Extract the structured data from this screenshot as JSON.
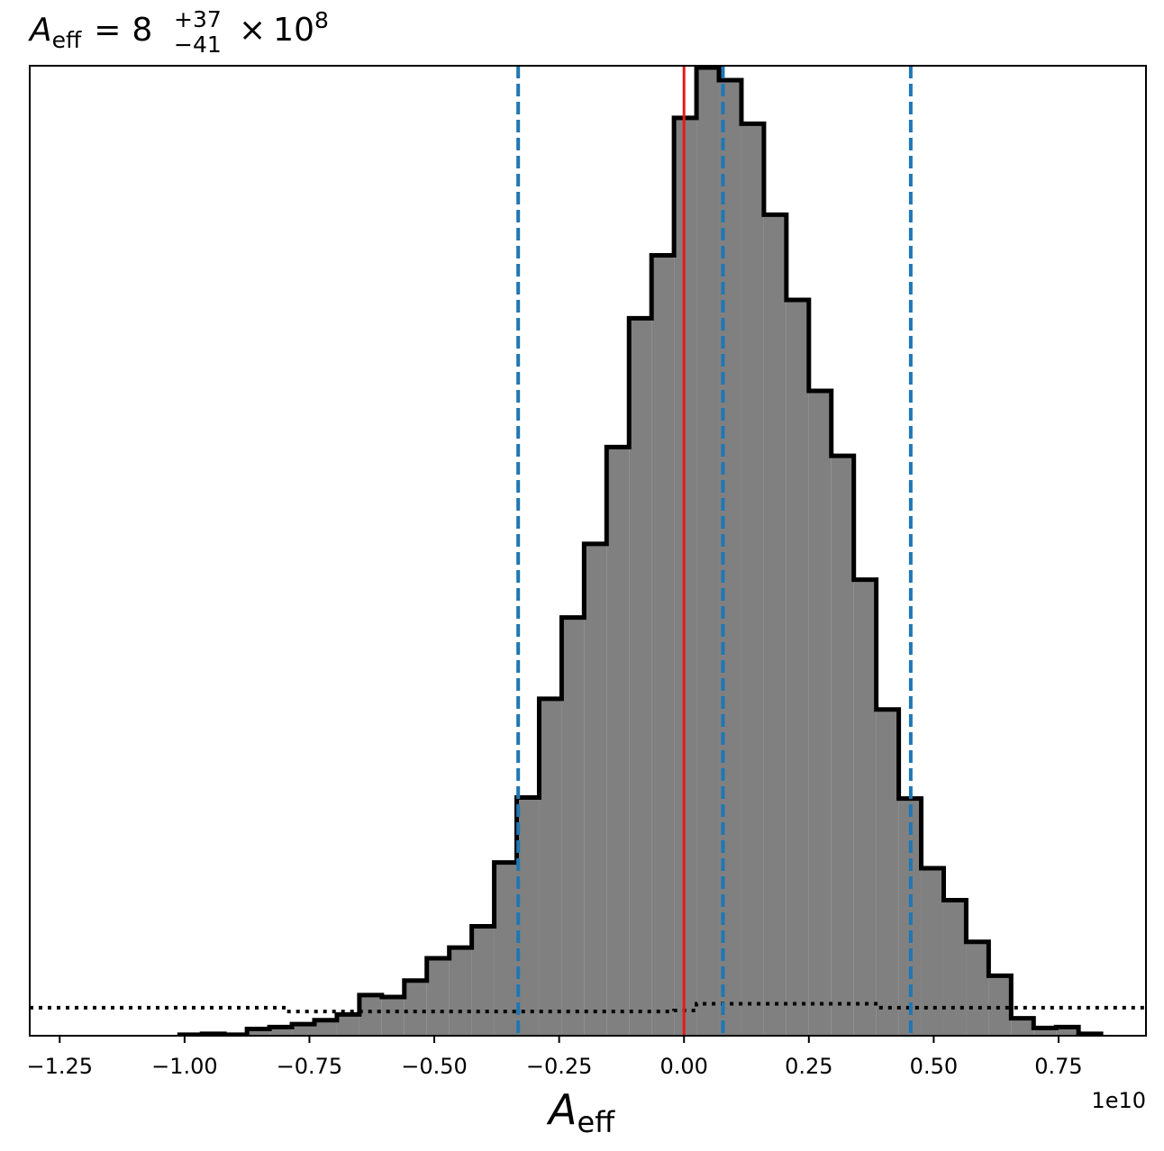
{
  "chart_data": {
    "type": "histogram",
    "title": {
      "symbol": "A",
      "symbol_sub": "eff",
      "equals": "=",
      "median": "8",
      "upper": "+37",
      "lower": "−41",
      "times": "×",
      "base": "10",
      "exponent": "8"
    },
    "xlabel": {
      "symbol": "A",
      "sub": "eff"
    },
    "x_offset_label": "1e10",
    "xlim": [
      -1.31,
      0.925
    ],
    "ylim": [
      0,
      1.0
    ],
    "x_ticks": [
      -1.25,
      -1.0,
      -0.75,
      -0.5,
      -0.25,
      0.0,
      0.25,
      0.5,
      0.75
    ],
    "x_tick_labels": [
      "−1.25",
      "−1.00",
      "−0.75",
      "−0.50",
      "−0.25",
      "0.00",
      "0.25",
      "0.50",
      "0.75"
    ],
    "y_ticks_shown": false,
    "bin_edges": [
      -1.01,
      -0.965,
      -0.92,
      -0.875,
      -0.83,
      -0.785,
      -0.74,
      -0.695,
      -0.65,
      -0.605,
      -0.56,
      -0.515,
      -0.47,
      -0.425,
      -0.38,
      -0.335,
      -0.29,
      -0.245,
      -0.2,
      -0.155,
      -0.11,
      -0.065,
      -0.02,
      0.025,
      0.07,
      0.115,
      0.16,
      0.205,
      0.25,
      0.295,
      0.34,
      0.385,
      0.43,
      0.475,
      0.52,
      0.565,
      0.61,
      0.655,
      0.7,
      0.745,
      0.79,
      0.835
    ],
    "bin_values": [
      0.001,
      0.002,
      0.001,
      0.007,
      0.009,
      0.012,
      0.016,
      0.022,
      0.042,
      0.04,
      0.057,
      0.08,
      0.091,
      0.113,
      0.179,
      0.246,
      0.348,
      0.432,
      0.508,
      0.608,
      0.741,
      0.806,
      0.948,
      1.0,
      0.987,
      0.942,
      0.848,
      0.76,
      0.666,
      0.599,
      0.471,
      0.337,
      0.245,
      0.173,
      0.14,
      0.097,
      0.062,
      0.018,
      0.008,
      0.009,
      0.002
    ],
    "prior": {
      "style": "dotted",
      "color": "#000000",
      "x": [
        -1.31,
        -0.795,
        -0.795,
        -0.02,
        -0.02,
        0.025,
        0.025,
        0.39,
        0.39,
        0.925
      ],
      "y": [
        0.029,
        0.029,
        0.025,
        0.025,
        0.026,
        0.026,
        0.033,
        0.033,
        0.029,
        0.029
      ]
    },
    "vlines": [
      {
        "x": -0.332,
        "color": "#1f77b4",
        "style": "dashed",
        "meaning": "lower"
      },
      {
        "x": 0.078,
        "color": "#1f77b4",
        "style": "dashed",
        "meaning": "median"
      },
      {
        "x": 0.454,
        "color": "#1f77b4",
        "style": "dashed",
        "meaning": "upper"
      },
      {
        "x": 0.0,
        "color": "#e8191a",
        "style": "solid",
        "meaning": "injection"
      }
    ],
    "fill_color": "#808080",
    "edge_color": "#000000"
  }
}
